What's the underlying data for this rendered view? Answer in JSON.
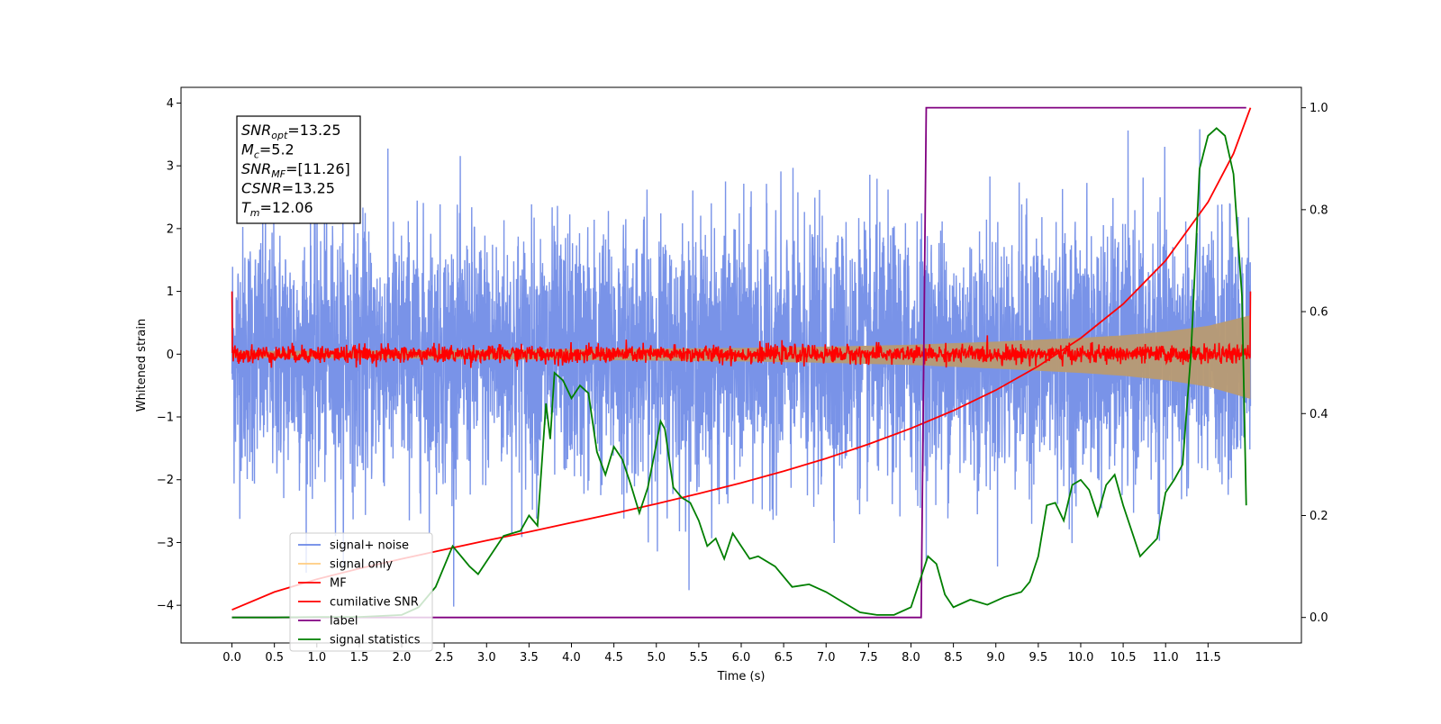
{
  "chart_data": {
    "type": "line",
    "title": "",
    "xlabel": "Time (s)",
    "ylabel": "Whitened strain",
    "y2label": "",
    "xlim": [
      -0.6,
      12.6
    ],
    "ylim": [
      -4.6,
      4.25
    ],
    "y2lim": [
      -0.05,
      1.04
    ],
    "x_ticks": [
      0.0,
      0.5,
      1.0,
      1.5,
      2.0,
      2.5,
      3.0,
      3.5,
      4.0,
      4.5,
      5.0,
      5.5,
      6.0,
      6.5,
      7.0,
      7.5,
      8.0,
      8.5,
      9.0,
      9.5,
      10.0,
      10.5,
      11.0,
      11.5
    ],
    "x_tick_labels": [
      "0.0",
      "0.5",
      "1.0",
      "1.5",
      "2.0",
      "2.5",
      "3.0",
      "3.5",
      "4.0",
      "4.5",
      "5.0",
      "5.5",
      "6.0",
      "6.5",
      "7.0",
      "7.5",
      "8.0",
      "8.5",
      "9.0",
      "9.5",
      "10.0",
      "10.5",
      "11.0",
      "11.5"
    ],
    "y_ticks": [
      4,
      3,
      2,
      1,
      0,
      -1,
      -2,
      -3,
      -4
    ],
    "y_tick_labels": [
      "4",
      "3",
      "2",
      "1",
      "0",
      "−1",
      "−2",
      "−3",
      "−4"
    ],
    "y2_ticks": [
      1.0,
      0.8,
      0.6,
      0.4,
      0.2,
      0.0
    ],
    "y2_tick_labels": [
      "1.0",
      "0.8",
      "0.6",
      "0.4",
      "0.2",
      "0.0"
    ],
    "grid": false,
    "legend_position": "lower-left",
    "annotation": {
      "lines": [
        {
          "var": "SNR",
          "sub": "opt",
          "value": "=13.25"
        },
        {
          "var": "M",
          "sub": "c",
          "value": "=5.2"
        },
        {
          "var": "SNR",
          "sub": "MF",
          "value": "=[11.26]"
        },
        {
          "var": "CSNR",
          "sub": "",
          "value": "=13.25"
        },
        {
          "var": "T",
          "sub": "m",
          "value": "=12.06"
        }
      ]
    },
    "series": [
      {
        "name": "signal+ noise",
        "axis": "left",
        "color": "#6a87e6",
        "kind": "noise",
        "x_range": [
          0.0,
          12.0
        ],
        "sigma": 1.0,
        "y_range": [
          -4.1,
          3.85
        ]
      },
      {
        "name": "signal only",
        "axis": "left",
        "color": "#b89a72",
        "kind": "chirp-envelope",
        "x_range": [
          0.0,
          12.0
        ],
        "amplitude": [
          [
            0.0,
            0.05
          ],
          [
            2.0,
            0.06
          ],
          [
            4.0,
            0.08
          ],
          [
            6.0,
            0.1
          ],
          [
            7.0,
            0.12
          ],
          [
            8.0,
            0.15
          ],
          [
            9.0,
            0.2
          ],
          [
            10.0,
            0.26
          ],
          [
            10.5,
            0.3
          ],
          [
            11.0,
            0.36
          ],
          [
            11.5,
            0.45
          ],
          [
            12.0,
            0.62
          ]
        ]
      },
      {
        "name": "MF",
        "axis": "left",
        "color": "#ff0000",
        "kind": "noise",
        "x_range": [
          0.0,
          12.0
        ],
        "sigma": 0.07,
        "endpoints": [
          1.0,
          1.0
        ]
      },
      {
        "name": "cumilative SNR",
        "axis": "right",
        "color": "#ff0000",
        "kind": "line",
        "points": [
          [
            0.0,
            0.015
          ],
          [
            0.5,
            0.05
          ],
          [
            1.0,
            0.075
          ],
          [
            1.5,
            0.096
          ],
          [
            2.0,
            0.115
          ],
          [
            2.5,
            0.133
          ],
          [
            3.0,
            0.151
          ],
          [
            3.5,
            0.168
          ],
          [
            4.0,
            0.186
          ],
          [
            4.5,
            0.204
          ],
          [
            5.0,
            0.223
          ],
          [
            5.5,
            0.243
          ],
          [
            6.0,
            0.264
          ],
          [
            6.5,
            0.287
          ],
          [
            7.0,
            0.312
          ],
          [
            7.5,
            0.34
          ],
          [
            8.0,
            0.371
          ],
          [
            8.5,
            0.406
          ],
          [
            9.0,
            0.446
          ],
          [
            9.5,
            0.493
          ],
          [
            10.0,
            0.548
          ],
          [
            10.5,
            0.615
          ],
          [
            11.0,
            0.7
          ],
          [
            11.5,
            0.815
          ],
          [
            11.8,
            0.91
          ],
          [
            12.0,
            1.0
          ]
        ]
      },
      {
        "name": "label",
        "axis": "right",
        "color": "#800080",
        "kind": "line",
        "points": [
          [
            0.0,
            0.0
          ],
          [
            8.12,
            0.0
          ],
          [
            8.18,
            1.0
          ],
          [
            11.95,
            1.0
          ]
        ]
      },
      {
        "name": "signal statistics",
        "axis": "right",
        "color": "#007f00",
        "kind": "line",
        "points": [
          [
            0.0,
            0.0
          ],
          [
            0.5,
            0.0
          ],
          [
            1.0,
            0.001
          ],
          [
            1.5,
            0.001
          ],
          [
            2.0,
            0.005
          ],
          [
            2.2,
            0.02
          ],
          [
            2.4,
            0.06
          ],
          [
            2.6,
            0.14
          ],
          [
            2.8,
            0.1
          ],
          [
            2.9,
            0.085
          ],
          [
            3.0,
            0.11
          ],
          [
            3.2,
            0.16
          ],
          [
            3.4,
            0.17
          ],
          [
            3.5,
            0.2
          ],
          [
            3.6,
            0.18
          ],
          [
            3.65,
            0.3
          ],
          [
            3.7,
            0.42
          ],
          [
            3.75,
            0.35
          ],
          [
            3.8,
            0.48
          ],
          [
            3.9,
            0.465
          ],
          [
            4.0,
            0.43
          ],
          [
            4.1,
            0.455
          ],
          [
            4.2,
            0.44
          ],
          [
            4.3,
            0.325
          ],
          [
            4.4,
            0.28
          ],
          [
            4.5,
            0.335
          ],
          [
            4.6,
            0.31
          ],
          [
            4.7,
            0.26
          ],
          [
            4.8,
            0.205
          ],
          [
            4.9,
            0.255
          ],
          [
            5.0,
            0.34
          ],
          [
            5.05,
            0.385
          ],
          [
            5.1,
            0.37
          ],
          [
            5.2,
            0.255
          ],
          [
            5.3,
            0.235
          ],
          [
            5.4,
            0.225
          ],
          [
            5.5,
            0.19
          ],
          [
            5.6,
            0.14
          ],
          [
            5.7,
            0.155
          ],
          [
            5.8,
            0.115
          ],
          [
            5.9,
            0.165
          ],
          [
            6.0,
            0.14
          ],
          [
            6.1,
            0.115
          ],
          [
            6.2,
            0.12
          ],
          [
            6.4,
            0.1
          ],
          [
            6.6,
            0.06
          ],
          [
            6.8,
            0.065
          ],
          [
            7.0,
            0.05
          ],
          [
            7.2,
            0.03
          ],
          [
            7.4,
            0.01
          ],
          [
            7.6,
            0.005
          ],
          [
            7.8,
            0.005
          ],
          [
            8.0,
            0.02
          ],
          [
            8.1,
            0.07
          ],
          [
            8.2,
            0.12
          ],
          [
            8.3,
            0.105
          ],
          [
            8.4,
            0.045
          ],
          [
            8.5,
            0.02
          ],
          [
            8.7,
            0.035
          ],
          [
            8.9,
            0.025
          ],
          [
            9.1,
            0.04
          ],
          [
            9.3,
            0.05
          ],
          [
            9.4,
            0.07
          ],
          [
            9.5,
            0.12
          ],
          [
            9.6,
            0.22
          ],
          [
            9.7,
            0.225
          ],
          [
            9.8,
            0.19
          ],
          [
            9.9,
            0.26
          ],
          [
            10.0,
            0.27
          ],
          [
            10.1,
            0.25
          ],
          [
            10.2,
            0.2
          ],
          [
            10.3,
            0.26
          ],
          [
            10.4,
            0.28
          ],
          [
            10.5,
            0.22
          ],
          [
            10.7,
            0.12
          ],
          [
            10.9,
            0.155
          ],
          [
            11.0,
            0.245
          ],
          [
            11.1,
            0.27
          ],
          [
            11.2,
            0.3
          ],
          [
            11.3,
            0.52
          ],
          [
            11.4,
            0.88
          ],
          [
            11.5,
            0.945
          ],
          [
            11.6,
            0.96
          ],
          [
            11.7,
            0.945
          ],
          [
            11.8,
            0.87
          ],
          [
            11.9,
            0.63
          ],
          [
            11.95,
            0.22
          ]
        ]
      }
    ]
  }
}
